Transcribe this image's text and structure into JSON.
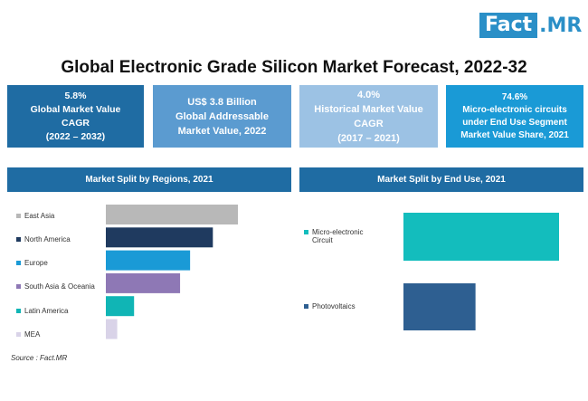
{
  "logo": {
    "part1": "Fact",
    "part2": ".MR"
  },
  "title": "Global Electronic Grade Silicon Market Forecast, 2022-32",
  "kpis": [
    {
      "line1": "5.8%",
      "line2": "Global Market Value",
      "line3": "CAGR",
      "line4": "(2022 – 2032)"
    },
    {
      "line1": "US$ 3.8 Billion",
      "line2": "Global Addressable",
      "line3": "Market Value, 2022"
    },
    {
      "line1": "4.0%",
      "line2": "Historical Market Value",
      "line3": "CAGR",
      "line4": "(2017 – 2021)"
    },
    {
      "line1": "74.6%",
      "line2": "Micro-electronic circuits",
      "line3": "under End Use Segment",
      "line4": "Market Value Share, 2021"
    }
  ],
  "source": "Source : Fact.MR",
  "colors": {
    "east_asia": "#b8b8b8",
    "north_america": "#1f3a5f",
    "europe": "#1a9ad6",
    "south_asia": "#8e78b5",
    "latin_america": "#10b5b5",
    "mea": "#d9d3e8",
    "micro": "#13bdbd",
    "photo": "#2e5f91"
  },
  "chart_data": [
    {
      "type": "bar",
      "orientation": "horizontal",
      "title": "Market Split by Regions, 2021",
      "categories": [
        "East Asia",
        "North America",
        "Europe",
        "South Asia & Oceania",
        "Latin America",
        "MEA"
      ],
      "values": [
        29,
        23.5,
        18.5,
        16.3,
        6.2,
        2.5
      ],
      "value_unit": "estimated relative share (no axis printed)"
    },
    {
      "type": "bar",
      "orientation": "horizontal",
      "title": "Market Split by End Use, 2021",
      "categories": [
        "Micro-electronic Circuit",
        "Photovoltaics"
      ],
      "values": [
        74.6,
        25.4
      ]
    }
  ]
}
